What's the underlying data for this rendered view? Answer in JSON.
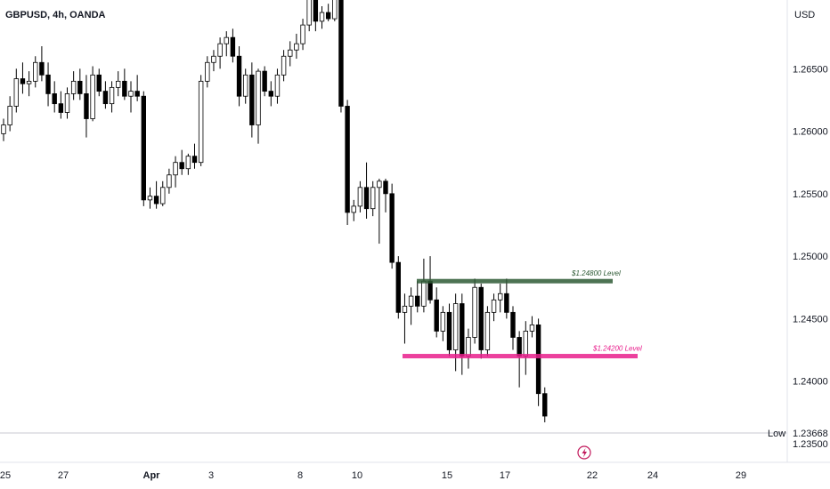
{
  "chart_data": {
    "type": "candlestick",
    "title": "GBPUSD, 4h, OANDA",
    "currency": "USD",
    "colors": {
      "up": "#ffffff",
      "down": "#000000",
      "wick": "#000000",
      "support": "#e91e8c",
      "resistance": "#2e5a35",
      "low_line": "#b2b5be"
    },
    "ylim": [
      1.2335,
      1.2705
    ],
    "y_ticks": [
      "1.26500",
      "1.26000",
      "1.25500",
      "1.25000",
      "1.24500",
      "1.24000",
      "1.23500"
    ],
    "x_ticks": [
      "25",
      "27",
      "Apr",
      "3",
      "8",
      "10",
      "15",
      "17",
      "22",
      "24",
      "29"
    ],
    "low": {
      "label": "Low",
      "value": "1.23668"
    },
    "levels": [
      {
        "price": 1.248,
        "label": "$1.24800 Level",
        "color": "#2e5a35"
      },
      {
        "price": 1.242,
        "label": "$1.24200 Level",
        "color": "#e91e8c"
      }
    ],
    "candles": [
      [
        1.2598,
        1.261,
        1.2592,
        1.2605
      ],
      [
        1.2605,
        1.2628,
        1.26,
        1.262
      ],
      [
        1.262,
        1.265,
        1.2615,
        1.2642
      ],
      [
        1.2642,
        1.2655,
        1.263,
        1.2638
      ],
      [
        1.2638,
        1.2648,
        1.2628,
        1.264
      ],
      [
        1.264,
        1.266,
        1.2635,
        1.2655
      ],
      [
        1.2655,
        1.2668,
        1.264,
        1.2645
      ],
      [
        1.2645,
        1.2655,
        1.262,
        1.263
      ],
      [
        1.263,
        1.264,
        1.2615,
        1.2622
      ],
      [
        1.2622,
        1.2632,
        1.261,
        1.2615
      ],
      [
        1.2615,
        1.2635,
        1.261,
        1.263
      ],
      [
        1.263,
        1.2648,
        1.2625,
        1.264
      ],
      [
        1.264,
        1.265,
        1.2625,
        1.263
      ],
      [
        1.263,
        1.2645,
        1.2595,
        1.261
      ],
      [
        1.261,
        1.2652,
        1.2608,
        1.2645
      ],
      [
        1.2645,
        1.265,
        1.2628,
        1.2632
      ],
      [
        1.2632,
        1.264,
        1.2618,
        1.2622
      ],
      [
        1.2622,
        1.264,
        1.2615,
        1.2635
      ],
      [
        1.2635,
        1.2648,
        1.2628,
        1.264
      ],
      [
        1.264,
        1.265,
        1.2625,
        1.2628
      ],
      [
        1.2628,
        1.264,
        1.2615,
        1.2632
      ],
      [
        1.2632,
        1.2645,
        1.2624,
        1.2628
      ],
      [
        1.2628,
        1.2632,
        1.254,
        1.2545
      ],
      [
        1.2545,
        1.2555,
        1.2538,
        1.2548
      ],
      [
        1.2548,
        1.256,
        1.2538,
        1.2542
      ],
      [
        1.2542,
        1.256,
        1.254,
        1.2555
      ],
      [
        1.2555,
        1.257,
        1.255,
        1.2565
      ],
      [
        1.2565,
        1.258,
        1.2555,
        1.2575
      ],
      [
        1.2575,
        1.2585,
        1.2565,
        1.257
      ],
      [
        1.257,
        1.2582,
        1.2565,
        1.258
      ],
      [
        1.258,
        1.259,
        1.257,
        1.2575
      ],
      [
        1.2575,
        1.2645,
        1.2572,
        1.264
      ],
      [
        1.264,
        1.266,
        1.2635,
        1.2655
      ],
      [
        1.2655,
        1.2665,
        1.2648,
        1.266
      ],
      [
        1.266,
        1.2675,
        1.265,
        1.267
      ],
      [
        1.267,
        1.268,
        1.266,
        1.2675
      ],
      [
        1.2675,
        1.2682,
        1.2655,
        1.266
      ],
      [
        1.266,
        1.2668,
        1.262,
        1.2628
      ],
      [
        1.2628,
        1.265,
        1.2622,
        1.2645
      ],
      [
        1.2645,
        1.2655,
        1.2595,
        1.2605
      ],
      [
        1.2605,
        1.265,
        1.259,
        1.2648
      ],
      [
        1.2648,
        1.2652,
        1.2628,
        1.2632
      ],
      [
        1.2632,
        1.264,
        1.262,
        1.2628
      ],
      [
        1.2628,
        1.265,
        1.2622,
        1.2645
      ],
      [
        1.2645,
        1.2665,
        1.264,
        1.266
      ],
      [
        1.266,
        1.2672,
        1.2652,
        1.2665
      ],
      [
        1.2665,
        1.2678,
        1.2658,
        1.267
      ],
      [
        1.267,
        1.269,
        1.2665,
        1.2685
      ],
      [
        1.2685,
        1.2715,
        1.268,
        1.271
      ],
      [
        1.271,
        1.2715,
        1.268,
        1.2688
      ],
      [
        1.2688,
        1.27,
        1.2682,
        1.2695
      ],
      [
        1.2695,
        1.2702,
        1.2688,
        1.269
      ],
      [
        1.269,
        1.2712,
        1.2688,
        1.271
      ],
      [
        1.271,
        1.2712,
        1.2615,
        1.262
      ],
      [
        1.262,
        1.2625,
        1.2525,
        1.2535
      ],
      [
        1.2535,
        1.2545,
        1.2528,
        1.254
      ],
      [
        1.254,
        1.256,
        1.2535,
        1.2555
      ],
      [
        1.2555,
        1.2575,
        1.253,
        1.2538
      ],
      [
        1.2538,
        1.256,
        1.2532,
        1.2555
      ],
      [
        1.2555,
        1.2562,
        1.251,
        1.256
      ],
      [
        1.256,
        1.2562,
        1.2535,
        1.255
      ],
      [
        1.255,
        1.2558,
        1.249,
        1.2495
      ],
      [
        1.2495,
        1.25,
        1.245,
        1.2455
      ],
      [
        1.2455,
        1.247,
        1.243,
        1.246
      ],
      [
        1.246,
        1.2475,
        1.2445,
        1.2468
      ],
      [
        1.2468,
        1.248,
        1.2455,
        1.246
      ],
      [
        1.246,
        1.2498,
        1.2455,
        1.248
      ],
      [
        1.248,
        1.25,
        1.2462,
        1.2465
      ],
      [
        1.2465,
        1.2475,
        1.2435,
        1.244
      ],
      [
        1.244,
        1.246,
        1.2432,
        1.2455
      ],
      [
        1.2455,
        1.2462,
        1.242,
        1.2425
      ],
      [
        1.2425,
        1.247,
        1.2408,
        1.2462
      ],
      [
        1.2462,
        1.247,
        1.2405,
        1.242
      ],
      [
        1.242,
        1.2442,
        1.241,
        1.2435
      ],
      [
        1.2435,
        1.2482,
        1.243,
        1.2475
      ],
      [
        1.2475,
        1.2478,
        1.2418,
        1.2425
      ],
      [
        1.2425,
        1.246,
        1.242,
        1.2455
      ],
      [
        1.2455,
        1.247,
        1.2448,
        1.2465
      ],
      [
        1.2465,
        1.2478,
        1.2455,
        1.247
      ],
      [
        1.247,
        1.2482,
        1.245,
        1.2455
      ],
      [
        1.2455,
        1.246,
        1.2425,
        1.2435
      ],
      [
        1.2435,
        1.244,
        1.2395,
        1.242
      ],
      [
        1.242,
        1.2448,
        1.2405,
        1.244
      ],
      [
        1.244,
        1.2452,
        1.2435,
        1.2445
      ],
      [
        1.2445,
        1.245,
        1.238,
        1.239
      ],
      [
        1.239,
        1.2395,
        1.2367,
        1.2372
      ]
    ]
  }
}
